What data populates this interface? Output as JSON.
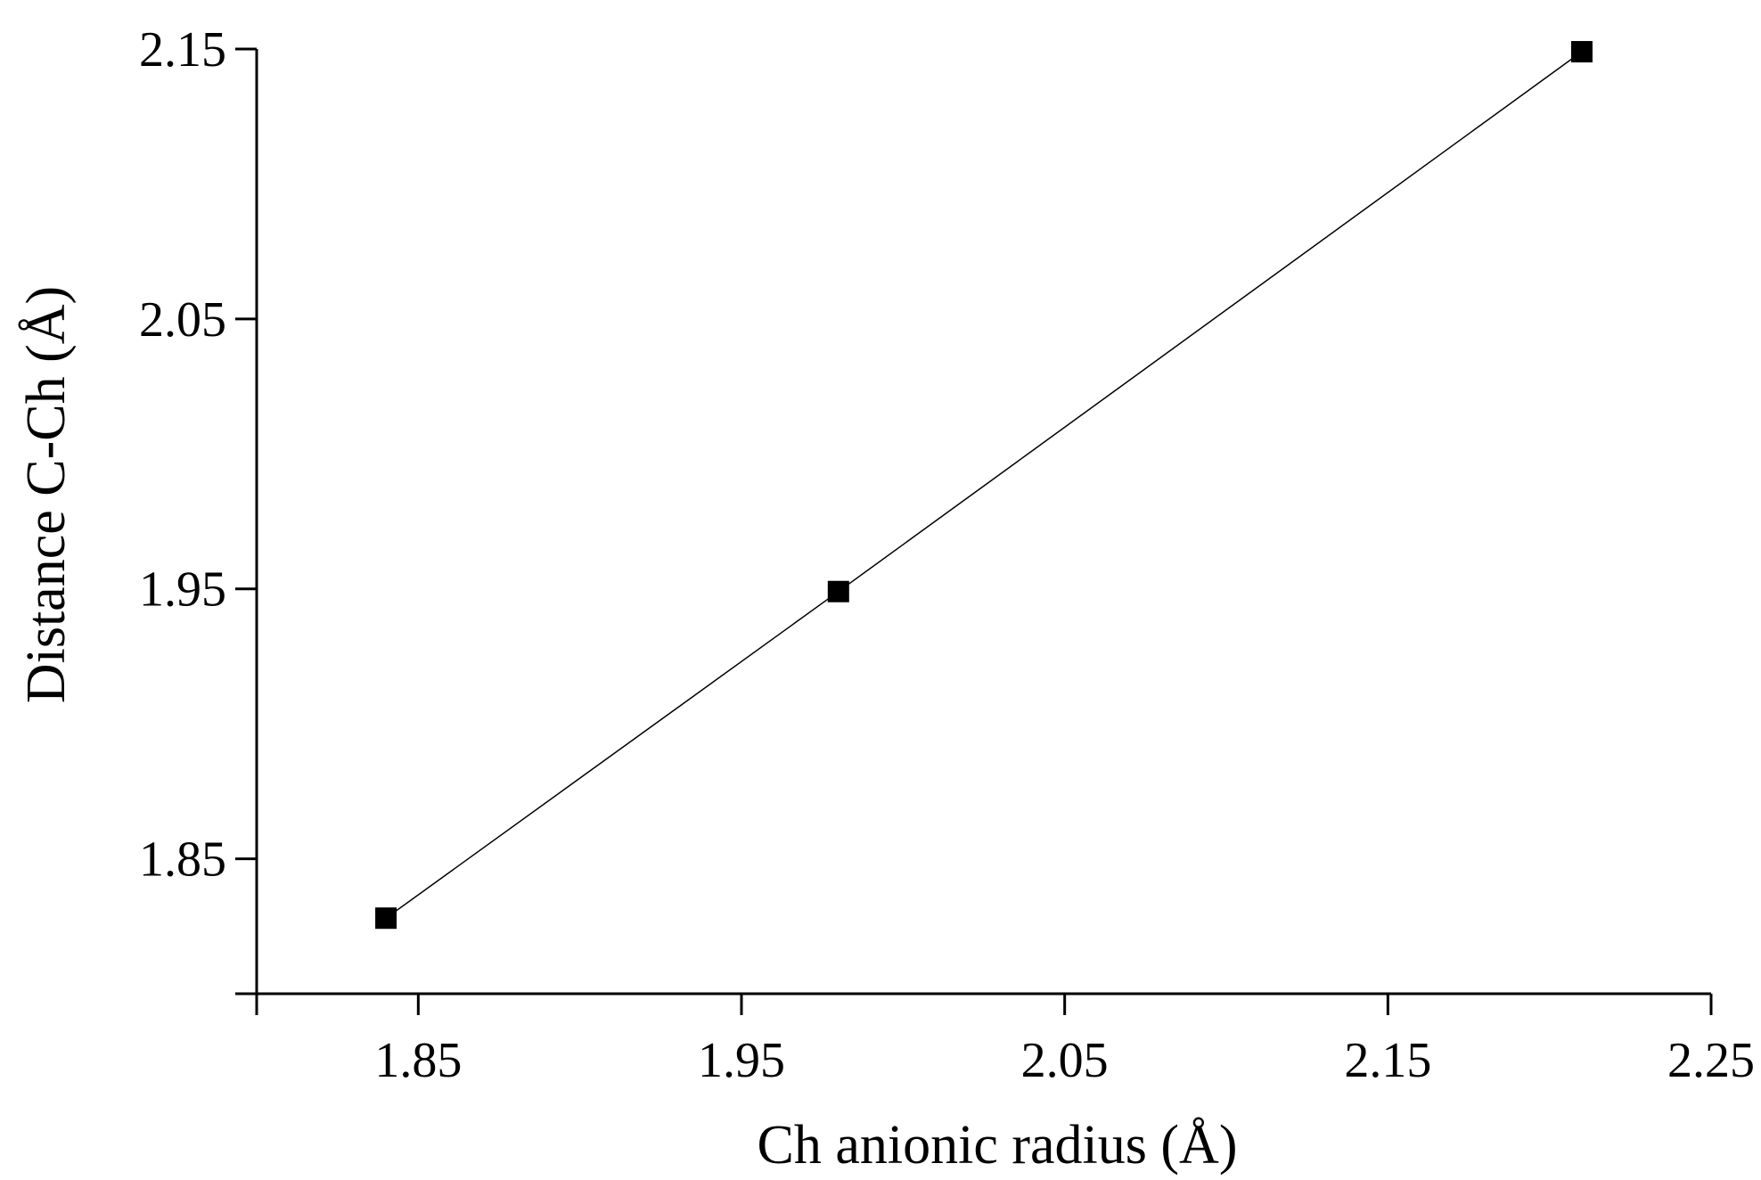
{
  "chart_data": {
    "type": "line",
    "title": "",
    "xlabel": "Ch anionic radius (Å)",
    "ylabel": "Distance C-Ch (Å)",
    "xlim": [
      1.8,
      2.25
    ],
    "ylim": [
      1.8,
      2.15
    ],
    "xticks": [
      "1.85",
      "1.95",
      "2.05",
      "2.15",
      "2.25"
    ],
    "yticks": [
      "1.85",
      "1.95",
      "2.05",
      "2.15"
    ],
    "grid": false,
    "legend": "none",
    "series": [
      {
        "marker": "square",
        "color": "#000000",
        "x": [
          1.84,
          1.98,
          2.21
        ],
        "y": [
          1.828,
          1.949,
          2.149
        ]
      }
    ]
  }
}
